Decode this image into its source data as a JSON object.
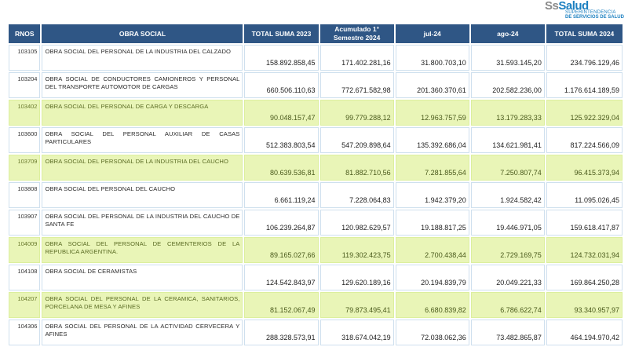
{
  "logo": {
    "main_prefix": "Ss",
    "main_rest": "Salud",
    "sub1": "SUPERINTENDENCIA",
    "sub2": "DE SERVICIOS DE SALUD"
  },
  "table": {
    "headers": [
      "RNOS",
      "OBRA SOCIAL",
      "TOTAL SUMA 2023",
      "Acumulado 1° Semestre 2024",
      "jul-24",
      "ago-24",
      "TOTAL SUMA 2024"
    ],
    "rows": [
      {
        "rnos": "103105",
        "name": "OBRA SOCIAL DEL PERSONAL DE LA INDUSTRIA DEL CALZADO",
        "total2023": "158.892.858,45",
        "acum1s2024": "171.402.281,16",
        "jul24": "31.800.703,10",
        "ago24": "31.593.145,20",
        "total2024": "234.796.129,46",
        "highlighted": false
      },
      {
        "rnos": "103204",
        "name": "OBRA SOCIAL DE CONDUCTORES CAMIONEROS Y PERSONAL DEL TRANSPORTE AUTOMOTOR DE CARGAS",
        "total2023": "660.506.110,63",
        "acum1s2024": "772.671.582,98",
        "jul24": "201.360.370,61",
        "ago24": "202.582.236,00",
        "total2024": "1.176.614.189,59",
        "highlighted": false
      },
      {
        "rnos": "103402",
        "name": "OBRA SOCIAL DEL PERSONAL DE CARGA Y DESCARGA",
        "total2023": "90.048.157,47",
        "acum1s2024": "99.779.288,12",
        "jul24": "12.963.757,59",
        "ago24": "13.179.283,33",
        "total2024": "125.922.329,04",
        "highlighted": true
      },
      {
        "rnos": "103600",
        "name": "OBRA SOCIAL DEL PERSONAL AUXILIAR DE CASAS PARTICULARES",
        "total2023": "512.383.803,54",
        "acum1s2024": "547.209.898,64",
        "jul24": "135.392.686,04",
        "ago24": "134.621.981,41",
        "total2024": "817.224.566,09",
        "highlighted": false
      },
      {
        "rnos": "103709",
        "name": "OBRA SOCIAL DEL PERSONAL DE LA INDUSTRIA DEL CAUCHO",
        "total2023": "80.639.536,81",
        "acum1s2024": "81.882.710,56",
        "jul24": "7.281.855,64",
        "ago24": "7.250.807,74",
        "total2024": "96.415.373,94",
        "highlighted": true
      },
      {
        "rnos": "103808",
        "name": "OBRA SOCIAL DEL PERSONAL DEL CAUCHO",
        "total2023": "6.661.119,24",
        "acum1s2024": "7.228.064,83",
        "jul24": "1.942.379,20",
        "ago24": "1.924.582,42",
        "total2024": "11.095.026,45",
        "highlighted": false
      },
      {
        "rnos": "103907",
        "name": "OBRA SOCIAL DEL PERSONAL DE LA INDUSTRIA DEL CAUCHO DE SANTA FE",
        "total2023": "106.239.264,87",
        "acum1s2024": "120.982.629,57",
        "jul24": "19.188.817,25",
        "ago24": "19.446.971,05",
        "total2024": "159.618.417,87",
        "highlighted": false
      },
      {
        "rnos": "104009",
        "name": "OBRA SOCIAL DEL PERSONAL DE CEMENTERIOS DE LA REPUBLICA ARGENTINA.",
        "total2023": "89.165.027,66",
        "acum1s2024": "119.302.423,75",
        "jul24": "2.700.438,44",
        "ago24": "2.729.169,75",
        "total2024": "124.732.031,94",
        "highlighted": true
      },
      {
        "rnos": "104108",
        "name": "OBRA SOCIAL DE CERAMISTAS",
        "total2023": "124.542.843,97",
        "acum1s2024": "129.620.189,16",
        "jul24": "20.194.839,79",
        "ago24": "20.049.221,33",
        "total2024": "169.864.250,28",
        "highlighted": false
      },
      {
        "rnos": "104207",
        "name": "OBRA SOCIAL DEL PERSONAL DE LA CERAMICA, SANITARIOS, PORCELANA DE MESA Y AFINES",
        "total2023": "81.152.067,49",
        "acum1s2024": "79.873.495,41",
        "jul24": "6.680.839,82",
        "ago24": "6.786.622,74",
        "total2024": "93.340.957,97",
        "highlighted": true
      },
      {
        "rnos": "104306",
        "name": "OBRA SOCIAL DEL PERSONAL DE LA ACTIVIDAD CERVECERA Y AFINES",
        "total2023": "288.328.573,91",
        "acum1s2024": "318.674.042,19",
        "jul24": "72.038.062,36",
        "ago24": "73.482.865,87",
        "total2024": "464.194.970,42",
        "highlighted": false
      }
    ]
  }
}
